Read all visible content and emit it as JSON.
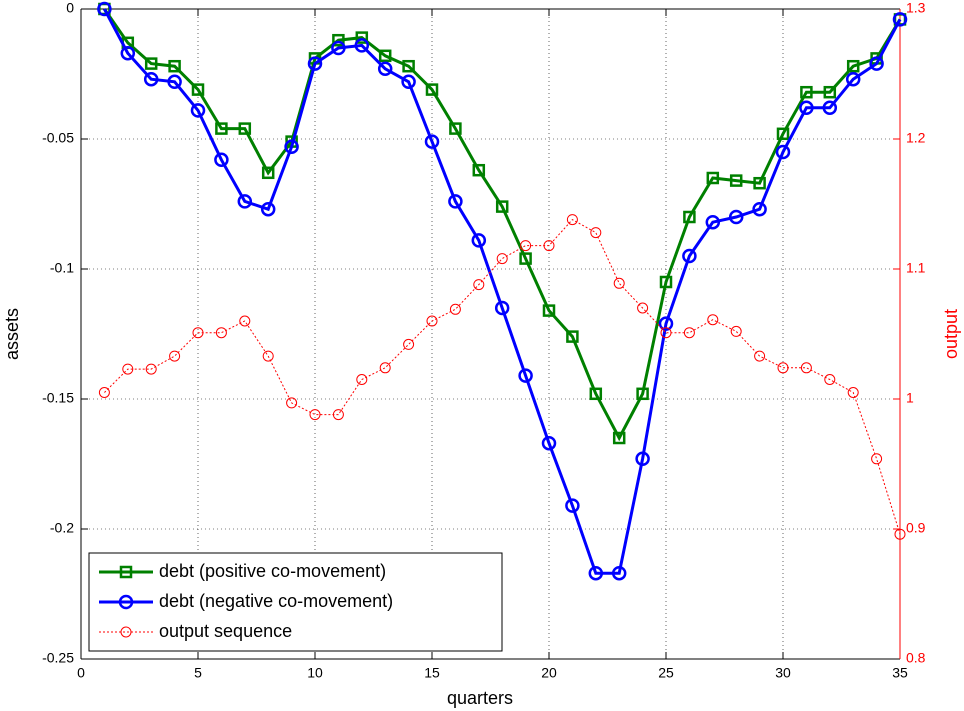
{
  "chart_data": {
    "type": "line",
    "xlabel": "quarters",
    "ylabel": "assets",
    "y2label": "output",
    "x": [
      1,
      2,
      3,
      4,
      5,
      6,
      7,
      8,
      9,
      10,
      11,
      12,
      13,
      14,
      15,
      16,
      17,
      18,
      19,
      20,
      21,
      22,
      23,
      24,
      25,
      26,
      27,
      28,
      29,
      30,
      31,
      32,
      33,
      34,
      35
    ],
    "xlim": [
      0,
      35
    ],
    "xticks": [
      0,
      5,
      10,
      15,
      20,
      25,
      30,
      35
    ],
    "ylim": [
      -0.25,
      0
    ],
    "yticks": [
      -0.25,
      -0.2,
      -0.15,
      -0.1,
      -0.05,
      0
    ],
    "y2lim": [
      0.8,
      1.3
    ],
    "y2ticks": [
      0.8,
      0.9,
      1,
      1.1,
      1.2,
      1.3
    ],
    "y2color": "#ff0000",
    "grid": true,
    "legend": "lower-left",
    "series": [
      {
        "name": "debt (positive co-movement)",
        "color": "#008000",
        "marker": "square",
        "linestyle": "solid",
        "values": [
          0,
          -0.013,
          -0.021,
          -0.022,
          -0.031,
          -0.046,
          -0.046,
          -0.063,
          -0.051,
          -0.019,
          -0.012,
          -0.011,
          -0.018,
          -0.022,
          -0.031,
          -0.046,
          -0.062,
          -0.076,
          -0.096,
          -0.116,
          -0.126,
          -0.148,
          -0.165,
          -0.148,
          -0.105,
          -0.08,
          -0.065,
          -0.066,
          -0.067,
          -0.048,
          -0.032,
          -0.032,
          -0.022,
          -0.019,
          -0.004
        ]
      },
      {
        "name": "debt (negative co-movement)",
        "color": "#0000ff",
        "marker": "circle",
        "linestyle": "solid",
        "values": [
          0,
          -0.017,
          -0.027,
          -0.028,
          -0.039,
          -0.058,
          -0.074,
          -0.077,
          -0.053,
          -0.021,
          -0.015,
          -0.014,
          -0.023,
          -0.028,
          -0.051,
          -0.074,
          -0.089,
          -0.115,
          -0.141,
          -0.167,
          -0.191,
          -0.217,
          -0.217,
          -0.173,
          -0.121,
          -0.095,
          -0.082,
          -0.08,
          -0.077,
          -0.055,
          -0.038,
          -0.038,
          -0.027,
          -0.021,
          -0.004
        ]
      },
      {
        "name": "output sequence",
        "color": "#ff0000",
        "marker": "circle",
        "linestyle": "dotted",
        "axis": "y2",
        "values": [
          1.005,
          1.023,
          1.023,
          1.033,
          1.051,
          1.051,
          1.06,
          1.033,
          0.997,
          0.988,
          0.988,
          1.015,
          1.024,
          1.042,
          1.06,
          1.069,
          1.088,
          1.108,
          1.118,
          1.118,
          1.138,
          1.128,
          1.089,
          1.07,
          1.051,
          1.051,
          1.061,
          1.052,
          1.033,
          1.024,
          1.024,
          1.015,
          1.005,
          0.954,
          0.896
        ]
      }
    ]
  }
}
